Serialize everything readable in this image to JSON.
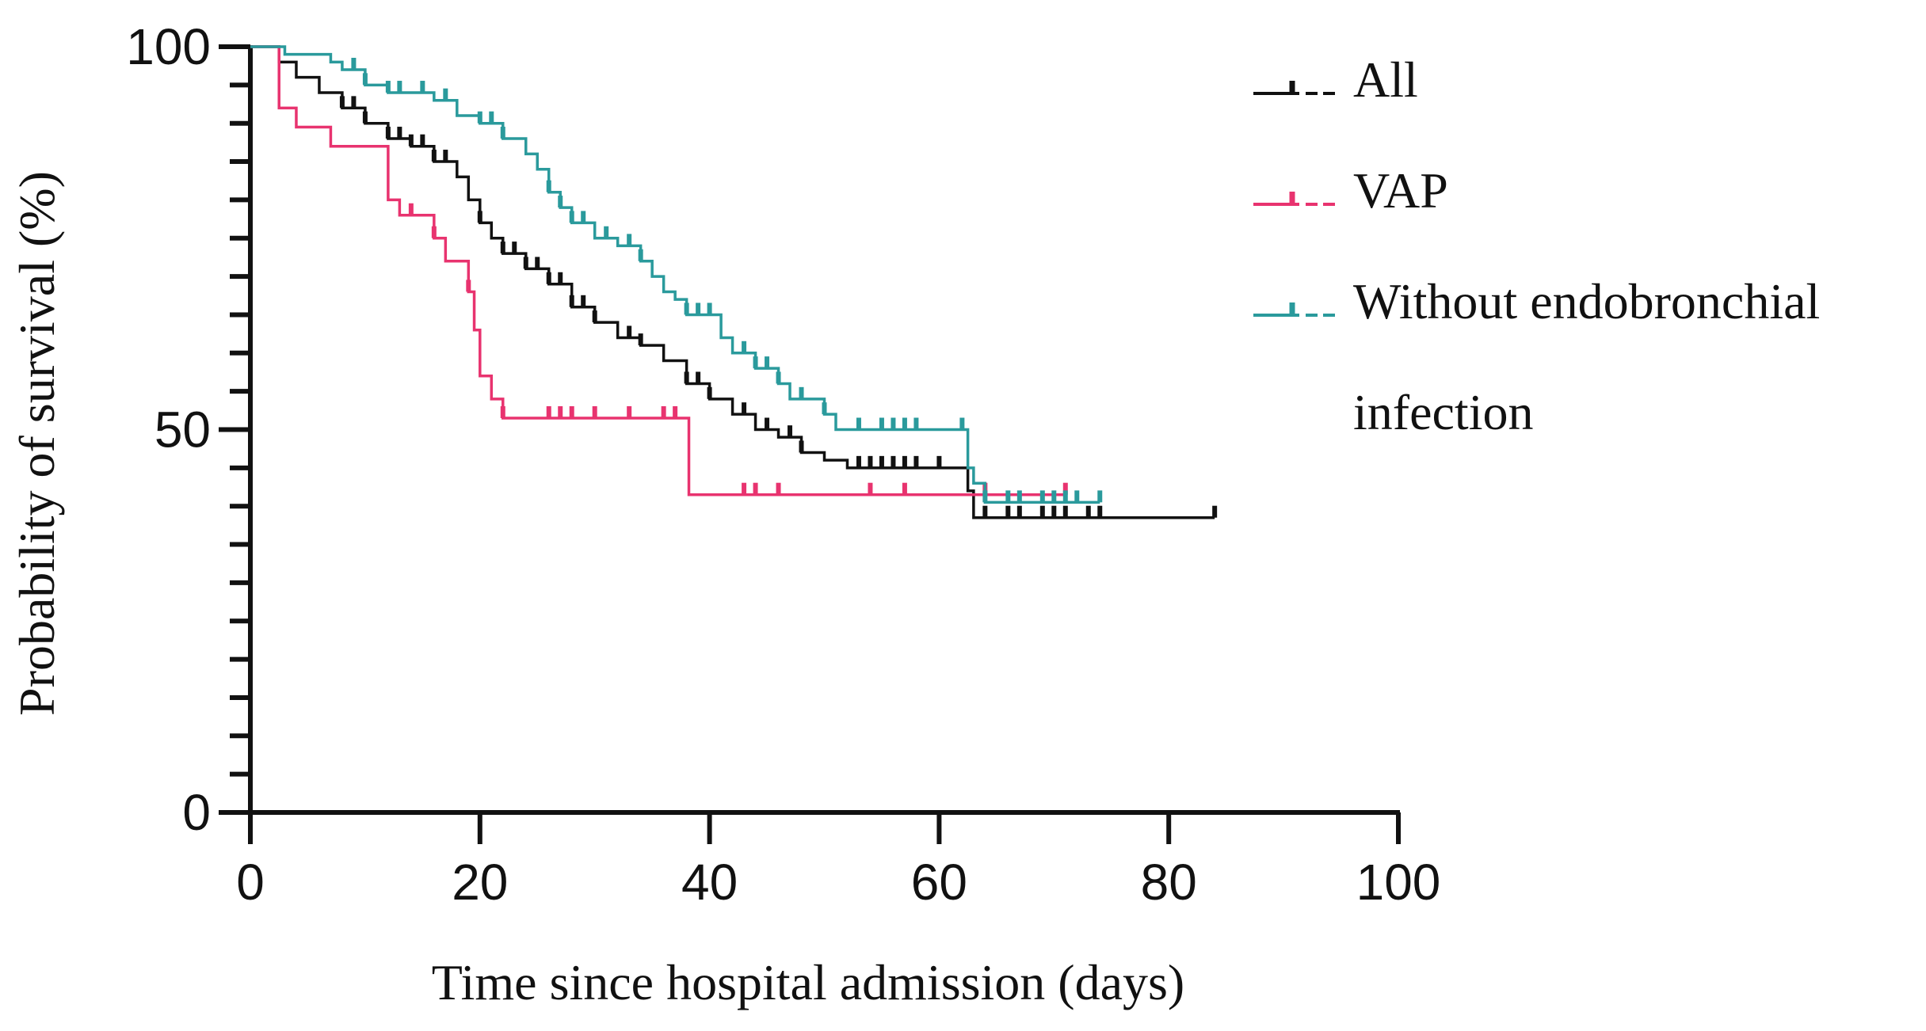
{
  "chart_data": {
    "type": "line",
    "subtype": "kaplan-meier step",
    "title": "",
    "xlabel": "Time since hospital admission (days)",
    "ylabel": "Probability of survival (%)",
    "xlim": [
      0,
      100
    ],
    "ylim": [
      0,
      100
    ],
    "x_ticks": [
      0,
      20,
      40,
      60,
      80,
      100
    ],
    "x_tick_labels": [
      "0",
      "20",
      "40",
      "60",
      "80",
      "100"
    ],
    "y_ticks": [
      0,
      50,
      100
    ],
    "y_tick_labels": [
      "0",
      "50",
      "100"
    ],
    "y_minor_step": 5,
    "legend_position": "top-right",
    "series": [
      {
        "name": "All",
        "legend_label": "All",
        "color": "#111111",
        "steps": [
          [
            0,
            100
          ],
          [
            2,
            100
          ],
          [
            2.5,
            98
          ],
          [
            4,
            96
          ],
          [
            6,
            94
          ],
          [
            8,
            92
          ],
          [
            10,
            90
          ],
          [
            12,
            88
          ],
          [
            14,
            87
          ],
          [
            16,
            85
          ],
          [
            18,
            83
          ],
          [
            19,
            80
          ],
          [
            20,
            77
          ],
          [
            21,
            75
          ],
          [
            22,
            73
          ],
          [
            24,
            71
          ],
          [
            26,
            69
          ],
          [
            28,
            66
          ],
          [
            30,
            64
          ],
          [
            32,
            62
          ],
          [
            34,
            61
          ],
          [
            36,
            59
          ],
          [
            38,
            56
          ],
          [
            40,
            54
          ],
          [
            42,
            52
          ],
          [
            44,
            50
          ],
          [
            46,
            49
          ],
          [
            48,
            47
          ],
          [
            50,
            46
          ],
          [
            52,
            45
          ],
          [
            62,
            45
          ],
          [
            62.5,
            42
          ],
          [
            63,
            38.5
          ],
          [
            84,
            38.5
          ]
        ],
        "censor_x": [
          8,
          9,
          10,
          12,
          13,
          14,
          15,
          16,
          17,
          20,
          22,
          23,
          24,
          25,
          26,
          27,
          28,
          29,
          30,
          33,
          34,
          38,
          39,
          40,
          43,
          45,
          47,
          48,
          53,
          54,
          55,
          56,
          57,
          58,
          60,
          64,
          66,
          67,
          69,
          70,
          71,
          73,
          74,
          84
        ]
      },
      {
        "name": "VAP",
        "legend_label": "VAP",
        "color": "#e8336f",
        "steps": [
          [
            0,
            100
          ],
          [
            2,
            100
          ],
          [
            2.5,
            92
          ],
          [
            4,
            89.5
          ],
          [
            7,
            87
          ],
          [
            12,
            80
          ],
          [
            13,
            78
          ],
          [
            16,
            75
          ],
          [
            17,
            72
          ],
          [
            19,
            68
          ],
          [
            19.5,
            63
          ],
          [
            20,
            57
          ],
          [
            21,
            54
          ],
          [
            22,
            51.5
          ],
          [
            38,
            51.5
          ],
          [
            38.2,
            41.5
          ],
          [
            71,
            41.5
          ]
        ],
        "censor_x": [
          14,
          16,
          19,
          22,
          26,
          27,
          28,
          30,
          33,
          36,
          37,
          43,
          44,
          46,
          54,
          57,
          64,
          71
        ]
      },
      {
        "name": "Without endobronchial infection",
        "legend_label_lines": [
          "Without endobronchial",
          "infection"
        ],
        "color": "#2a9a9c",
        "steps": [
          [
            0,
            100
          ],
          [
            3,
            99
          ],
          [
            7,
            98
          ],
          [
            8,
            97
          ],
          [
            10,
            95
          ],
          [
            12,
            94
          ],
          [
            16,
            93
          ],
          [
            18,
            91
          ],
          [
            20,
            90
          ],
          [
            22,
            88
          ],
          [
            24,
            86
          ],
          [
            25,
            84
          ],
          [
            26,
            81
          ],
          [
            27,
            79
          ],
          [
            28,
            77
          ],
          [
            30,
            75
          ],
          [
            32,
            74
          ],
          [
            34,
            72
          ],
          [
            35,
            70
          ],
          [
            36,
            68
          ],
          [
            37,
            67
          ],
          [
            38,
            65
          ],
          [
            41,
            62
          ],
          [
            42,
            60
          ],
          [
            44,
            58
          ],
          [
            46,
            56
          ],
          [
            47,
            54
          ],
          [
            50,
            52
          ],
          [
            51,
            50
          ],
          [
            62,
            50
          ],
          [
            62.5,
            45
          ],
          [
            63,
            43
          ],
          [
            64,
            40.5
          ],
          [
            74,
            40.5
          ]
        ],
        "censor_x": [
          9,
          10,
          12,
          13,
          15,
          17,
          20,
          21,
          22,
          26,
          27,
          28,
          29,
          31,
          33,
          34,
          38,
          39,
          40,
          43,
          44,
          45,
          46,
          48,
          50,
          53,
          55,
          56,
          57,
          58,
          62,
          64,
          66,
          67,
          69,
          70,
          71,
          72,
          74
        ]
      }
    ]
  }
}
